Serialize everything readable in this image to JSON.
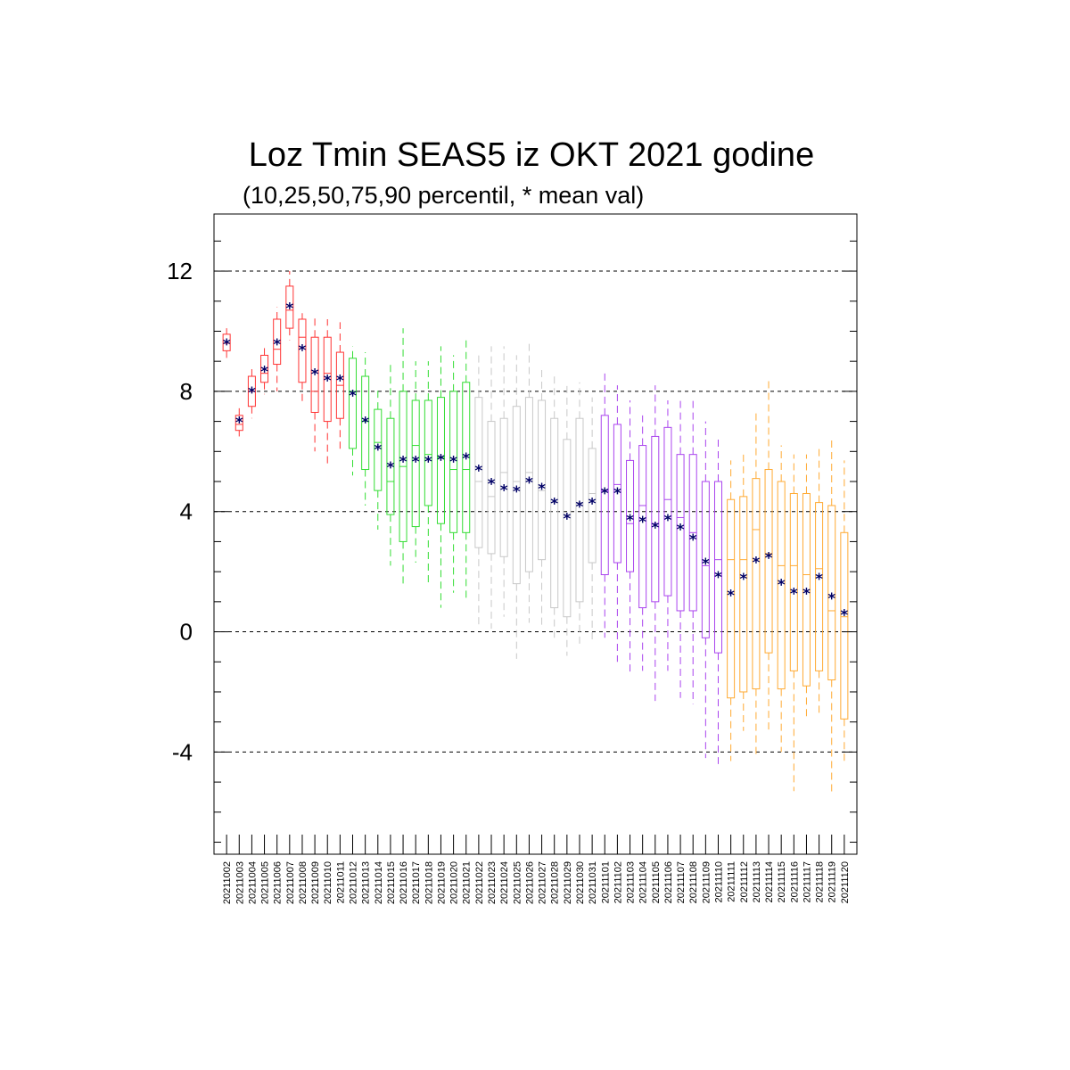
{
  "chart_data": {
    "type": "box",
    "title": "Loz Tmin SEAS5 iz OKT 2021 godine",
    "subtitle": "(10,25,50,75,90 percentil, * mean val)",
    "xlabel": "",
    "ylabel": "",
    "ylim": [
      -7.4,
      13.9
    ],
    "yticks": [
      -4,
      0,
      4,
      8,
      12
    ],
    "ytick_labels": [
      "-4",
      "0",
      "4",
      "8",
      "12"
    ],
    "grid": "horizontal dashed at major ticks",
    "colors": {
      "red": "#ff3333",
      "green": "#33dd33",
      "gray": "#c8c8c8",
      "purple": "#aa44ee",
      "orange": "#ffaa33",
      "mean": "#000066",
      "grid": "#000000"
    },
    "categories": [
      "20211002",
      "20211003",
      "20211004",
      "20211005",
      "20211006",
      "20211007",
      "20211008",
      "20211009",
      "20211010",
      "20211011",
      "20211012",
      "20211013",
      "20211014",
      "20211015",
      "20211016",
      "20211017",
      "20211018",
      "20211019",
      "20211020",
      "20211021",
      "20211022",
      "20211023",
      "20211024",
      "20211025",
      "20211026",
      "20211027",
      "20211028",
      "20211029",
      "20211030",
      "20211031",
      "20211101",
      "20211102",
      "20211103",
      "20211104",
      "20211105",
      "20211106",
      "20211107",
      "20211108",
      "20211109",
      "20211110",
      "20211111",
      "20211112",
      "20211113",
      "20211114",
      "20211115",
      "20211116",
      "20211117",
      "20211118",
      "20211119",
      "20211120"
    ],
    "group_colors": [
      "red",
      "red",
      "red",
      "red",
      "red",
      "red",
      "red",
      "red",
      "red",
      "red",
      "green",
      "green",
      "green",
      "green",
      "green",
      "green",
      "green",
      "green",
      "green",
      "green",
      "gray",
      "gray",
      "gray",
      "gray",
      "gray",
      "gray",
      "gray",
      "gray",
      "gray",
      "gray",
      "purple",
      "purple",
      "purple",
      "purple",
      "purple",
      "purple",
      "purple",
      "purple",
      "purple",
      "purple",
      "orange",
      "orange",
      "orange",
      "orange",
      "orange",
      "orange",
      "orange",
      "orange",
      "orange",
      "orange"
    ],
    "p10": [
      9.0,
      6.5,
      7.1,
      7.9,
      8.0,
      9.7,
      7.6,
      6.0,
      5.5,
      6.0,
      5.2,
      4.2,
      3.4,
      2.2,
      1.6,
      2.3,
      1.5,
      0.8,
      1.3,
      1.1,
      0.1,
      0.1,
      0.5,
      -0.9,
      0.3,
      0.1,
      -0.2,
      -0.8,
      -0.4,
      -0.4,
      -0.2,
      -1.0,
      -1.4,
      -1.3,
      -2.3,
      -1.3,
      -2.2,
      -2.4,
      -4.2,
      -4.4,
      -4.3,
      -3.3,
      -4.1,
      -3.3,
      -4.0,
      -5.3,
      -2.9,
      -2.7,
      -5.4,
      -4.3
    ],
    "p25": [
      9.35,
      6.7,
      7.5,
      8.3,
      8.9,
      10.1,
      8.3,
      7.3,
      7.0,
      7.1,
      6.1,
      5.4,
      4.7,
      3.9,
      3.0,
      3.5,
      4.2,
      3.6,
      3.3,
      3.3,
      2.8,
      2.6,
      2.5,
      1.6,
      2.0,
      2.4,
      0.8,
      0.5,
      1.0,
      2.3,
      1.9,
      2.3,
      2.0,
      0.8,
      1.0,
      1.2,
      0.7,
      0.7,
      -0.2,
      -0.7,
      -2.2,
      -2.0,
      -1.9,
      -0.7,
      -1.9,
      -1.3,
      -1.8,
      -1.3,
      -1.6,
      -2.9
    ],
    "p50": [
      9.6,
      6.9,
      8.0,
      8.6,
      9.4,
      10.7,
      9.8,
      8.0,
      8.6,
      8.2,
      8.0,
      7.0,
      6.3,
      5.0,
      5.5,
      6.2,
      5.9,
      5.8,
      5.4,
      5.4,
      5.0,
      4.5,
      5.3,
      5.0,
      5.3,
      4.7,
      4.3,
      3.9,
      4.3,
      4.6,
      4.7,
      4.9,
      3.6,
      4.2,
      3.6,
      4.4,
      3.8,
      3.3,
      2.2,
      2.4,
      2.4,
      2.4,
      3.4,
      2.6,
      2.2,
      2.2,
      1.9,
      2.1,
      0.7,
      0.5
    ],
    "p75": [
      9.9,
      7.2,
      8.5,
      9.2,
      10.4,
      11.5,
      10.4,
      9.8,
      9.8,
      9.3,
      9.1,
      8.5,
      7.4,
      7.1,
      8.0,
      7.7,
      7.7,
      7.8,
      8.0,
      8.3,
      7.8,
      7.0,
      7.1,
      7.5,
      7.8,
      7.7,
      7.1,
      6.4,
      7.1,
      6.1,
      7.2,
      6.9,
      5.7,
      6.2,
      6.5,
      6.8,
      5.9,
      5.9,
      5.0,
      5.0,
      4.4,
      4.5,
      5.1,
      5.4,
      5.0,
      4.6,
      4.6,
      4.3,
      4.2,
      3.3
    ],
    "p90": [
      10.1,
      7.5,
      8.8,
      9.5,
      10.8,
      12.0,
      10.6,
      10.5,
      10.4,
      10.3,
      9.5,
      9.3,
      8.1,
      8.9,
      10.1,
      9.0,
      9.0,
      9.5,
      9.2,
      9.8,
      9.3,
      9.5,
      9.5,
      9.2,
      9.6,
      8.8,
      8.6,
      8.3,
      8.3,
      7.8,
      8.7,
      8.2,
      7.7,
      7.2,
      8.2,
      7.7,
      7.8,
      7.8,
      7.0,
      6.4,
      5.7,
      5.9,
      7.3,
      8.4,
      6.2,
      5.9,
      5.9,
      6.1,
      6.4,
      5.7
    ],
    "mean": [
      9.6,
      7.0,
      8.0,
      8.7,
      9.6,
      10.8,
      9.4,
      8.6,
      8.4,
      8.4,
      7.9,
      7.0,
      6.1,
      5.5,
      5.7,
      5.7,
      5.7,
      5.75,
      5.7,
      5.8,
      5.4,
      4.95,
      4.75,
      4.7,
      5.0,
      4.8,
      4.3,
      3.8,
      4.2,
      4.3,
      4.65,
      4.65,
      3.75,
      3.7,
      3.5,
      3.75,
      3.45,
      3.1,
      2.3,
      1.85,
      1.25,
      1.8,
      2.35,
      2.5,
      1.6,
      1.3,
      1.3,
      1.8,
      1.15,
      0.6
    ]
  }
}
